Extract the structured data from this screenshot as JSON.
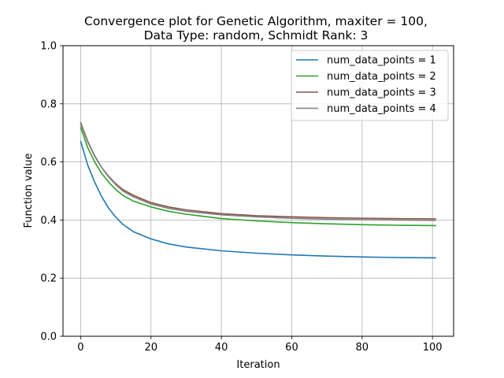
{
  "chart_data": {
    "type": "line",
    "title_lines": [
      "Convergence plot for Genetic Algorithm, maxiter = 100,",
      "Data Type: random, Schmidt Rank: 3"
    ],
    "xlabel": "Iteration",
    "ylabel": "Function value",
    "xlim": [
      -5,
      106
    ],
    "ylim": [
      0,
      1.0
    ],
    "xticks": [
      0,
      20,
      40,
      60,
      80,
      100
    ],
    "yticks": [
      0.0,
      0.2,
      0.4,
      0.6,
      0.8,
      1.0
    ],
    "xtick_labels": [
      "0",
      "20",
      "40",
      "60",
      "80",
      "100"
    ],
    "ytick_labels": [
      "0.0",
      "0.2",
      "0.4",
      "0.6",
      "0.8",
      "1.0"
    ],
    "grid": true,
    "legend_position": "top-right",
    "x": [
      0,
      2,
      4,
      6,
      8,
      10,
      12,
      15,
      20,
      25,
      30,
      40,
      50,
      60,
      70,
      80,
      90,
      101
    ],
    "series": [
      {
        "name": "num_data_points = 1",
        "color": "#1f77b4",
        "values": [
          0.672,
          0.59,
          0.53,
          0.48,
          0.44,
          0.41,
          0.385,
          0.36,
          0.335,
          0.318,
          0.307,
          0.294,
          0.286,
          0.28,
          0.276,
          0.273,
          0.271,
          0.27
        ]
      },
      {
        "name": "num_data_points = 2",
        "color": "#2ca02c",
        "values": [
          0.72,
          0.65,
          0.6,
          0.56,
          0.53,
          0.505,
          0.485,
          0.465,
          0.445,
          0.43,
          0.42,
          0.405,
          0.397,
          0.391,
          0.387,
          0.384,
          0.382,
          0.381
        ]
      },
      {
        "name": "num_data_points = 3",
        "color": "#8c564b",
        "values": [
          0.733,
          0.67,
          0.62,
          0.58,
          0.55,
          0.525,
          0.505,
          0.485,
          0.46,
          0.445,
          0.435,
          0.422,
          0.415,
          0.411,
          0.408,
          0.406,
          0.405,
          0.404
        ]
      },
      {
        "name": "num_data_points = 4",
        "color": "#7f7f7f",
        "values": [
          0.737,
          0.672,
          0.622,
          0.58,
          0.548,
          0.522,
          0.5,
          0.48,
          0.455,
          0.44,
          0.43,
          0.418,
          0.411,
          0.406,
          0.403,
          0.401,
          0.4,
          0.399
        ]
      }
    ]
  }
}
